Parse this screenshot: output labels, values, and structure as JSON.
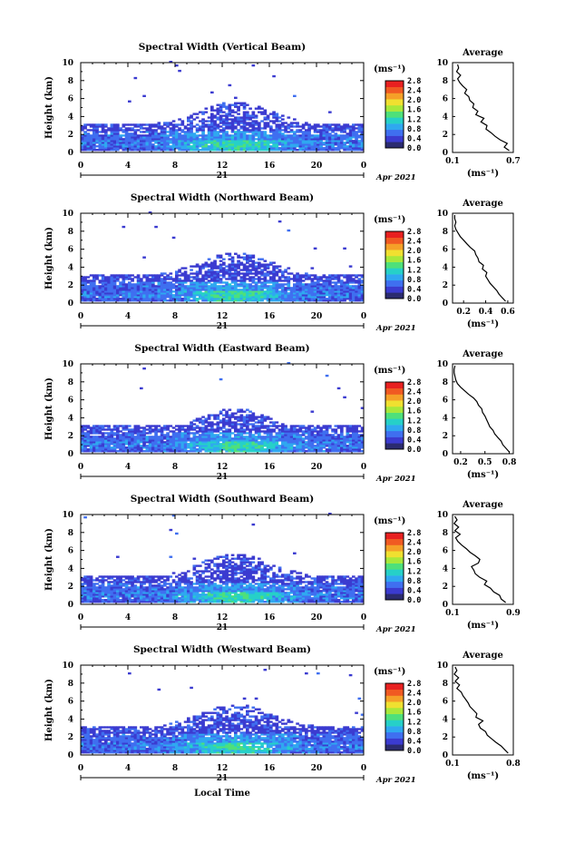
{
  "colors": {
    "scale": [
      "#2b2b70",
      "#3b3bd0",
      "#3f6ff0",
      "#2fa8f0",
      "#26d0c8",
      "#4ee07a",
      "#a8e83a",
      "#f0e030",
      "#f5a028",
      "#f05a22",
      "#e82020"
    ]
  },
  "chart_data": [
    {
      "type": "heatmap",
      "title": "Spectral Width (Vertical Beam)",
      "ylabel": "Height (km)",
      "ylim": [
        0,
        10
      ],
      "x_ticks": [
        "0",
        "4",
        "8",
        "12",
        "16",
        "20",
        "0"
      ],
      "day_label": "21",
      "date_label": "Apr 2021",
      "colorbar": {
        "unit": "(ms⁻¹)",
        "ticks": [
          "2.8",
          "2.4",
          "2.0",
          "1.6",
          "1.2",
          "0.8",
          "0.4",
          "0.0"
        ],
        "range": [
          0,
          2.8
        ]
      },
      "profile": {
        "title": "Average",
        "xlabel": "(ms⁻¹)",
        "x_ticks": [
          "0.1",
          "0.7"
        ],
        "xlim": [
          0.1,
          0.7
        ],
        "y": [
          0.2,
          0.6,
          1.0,
          1.4,
          1.8,
          2.2,
          2.6,
          3.0,
          3.4,
          3.8,
          4.2,
          4.6,
          5.0,
          5.4,
          5.8,
          6.2,
          6.6,
          7.0,
          7.4,
          7.8,
          8.2,
          8.6,
          9.0,
          9.4,
          9.8
        ],
        "x": [
          0.66,
          0.61,
          0.64,
          0.57,
          0.52,
          0.48,
          0.43,
          0.44,
          0.38,
          0.41,
          0.33,
          0.35,
          0.3,
          0.31,
          0.27,
          0.26,
          0.22,
          0.24,
          0.2,
          0.17,
          0.15,
          0.18,
          0.14,
          0.16,
          0.15
        ]
      }
    },
    {
      "type": "heatmap",
      "title": "Spectral Width (Northward Beam)",
      "ylabel": "Height (km)",
      "ylim": [
        0,
        10
      ],
      "x_ticks": [
        "0",
        "4",
        "8",
        "12",
        "16",
        "20",
        "0"
      ],
      "day_label": "21",
      "date_label": "Apr 2021",
      "colorbar": {
        "unit": "(ms⁻¹)",
        "ticks": [
          "2.8",
          "2.4",
          "2.0",
          "1.6",
          "1.2",
          "0.8",
          "0.4",
          "0.0"
        ],
        "range": [
          0,
          2.8
        ]
      },
      "profile": {
        "title": "Average",
        "xlabel": "(ms⁻¹)",
        "x_ticks": [
          "0.2",
          "0.4",
          "0.6"
        ],
        "xlim": [
          0.1,
          0.65
        ],
        "y": [
          0.2,
          0.6,
          1.0,
          1.4,
          1.8,
          2.2,
          2.6,
          3.0,
          3.4,
          3.8,
          4.2,
          4.6,
          5.0,
          5.4,
          5.8,
          6.2,
          6.6,
          7.0,
          7.4,
          7.8,
          8.2,
          8.6,
          9.0,
          9.4,
          9.8
        ],
        "x": [
          0.58,
          0.55,
          0.52,
          0.5,
          0.47,
          0.44,
          0.42,
          0.4,
          0.41,
          0.37,
          0.38,
          0.34,
          0.33,
          0.31,
          0.3,
          0.26,
          0.23,
          0.2,
          0.17,
          0.15,
          0.13,
          0.12,
          0.13,
          0.12,
          0.12
        ]
      }
    },
    {
      "type": "heatmap",
      "title": "Spectral Width (Eastward Beam)",
      "ylabel": "Height (km)",
      "ylim": [
        0,
        10
      ],
      "x_ticks": [
        "0",
        "4",
        "8",
        "12",
        "16",
        "20",
        "0"
      ],
      "day_label": "21",
      "date_label": "Apr 2021",
      "colorbar": {
        "unit": "(ms⁻¹)",
        "ticks": [
          "2.8",
          "2.4",
          "2.0",
          "1.6",
          "1.2",
          "0.8",
          "0.4",
          "0.0"
        ],
        "range": [
          0,
          2.8
        ]
      },
      "profile": {
        "title": "Average",
        "xlabel": "(ms⁻¹)",
        "x_ticks": [
          "0.2",
          "0.5",
          "0.8"
        ],
        "xlim": [
          0.1,
          0.85
        ],
        "y": [
          0.2,
          0.6,
          1.0,
          1.4,
          1.8,
          2.2,
          2.6,
          3.0,
          3.4,
          3.8,
          4.2,
          4.6,
          5.0,
          5.4,
          5.8,
          6.2,
          6.6,
          7.0,
          7.4,
          7.8,
          8.2,
          8.6,
          9.0,
          9.4,
          9.8
        ],
        "x": [
          0.8,
          0.76,
          0.72,
          0.7,
          0.66,
          0.62,
          0.6,
          0.56,
          0.54,
          0.52,
          0.5,
          0.47,
          0.46,
          0.42,
          0.4,
          0.36,
          0.3,
          0.25,
          0.2,
          0.16,
          0.14,
          0.13,
          0.12,
          0.12,
          0.13
        ]
      }
    },
    {
      "type": "heatmap",
      "title": "Spectral Width (Southward Beam)",
      "ylabel": "Height (km)",
      "ylim": [
        0,
        10
      ],
      "x_ticks": [
        "0",
        "4",
        "8",
        "12",
        "16",
        "20",
        "0"
      ],
      "day_label": "21",
      "date_label": "Apr 2021",
      "colorbar": {
        "unit": "(ms⁻¹)",
        "ticks": [
          "2.8",
          "2.4",
          "2.0",
          "1.6",
          "1.2",
          "0.8",
          "0.4",
          "0.0"
        ],
        "range": [
          0,
          2.8
        ]
      },
      "profile": {
        "title": "Average",
        "xlabel": "(ms⁻¹)",
        "x_ticks": [
          "0.1",
          "0.9"
        ],
        "xlim": [
          0.1,
          0.9
        ],
        "y": [
          0.2,
          0.6,
          1.0,
          1.4,
          1.8,
          2.2,
          2.6,
          3.0,
          3.4,
          3.8,
          4.2,
          4.6,
          5.0,
          5.4,
          5.8,
          6.2,
          6.6,
          7.0,
          7.4,
          7.8,
          8.2,
          8.6,
          9.0,
          9.4,
          9.8
        ],
        "x": [
          0.8,
          0.74,
          0.72,
          0.64,
          0.6,
          0.52,
          0.55,
          0.46,
          0.4,
          0.38,
          0.35,
          0.44,
          0.46,
          0.4,
          0.33,
          0.28,
          0.22,
          0.17,
          0.14,
          0.2,
          0.13,
          0.18,
          0.12,
          0.16,
          0.13
        ]
      }
    },
    {
      "type": "heatmap",
      "title": "Spectral Width (Westward Beam)",
      "ylabel": "Height (km)",
      "ylim": [
        0,
        10
      ],
      "x_ticks": [
        "0",
        "4",
        "8",
        "12",
        "16",
        "20",
        "0"
      ],
      "day_label": "21",
      "date_label": "Apr 2021",
      "xlabel": "Local Time",
      "colorbar": {
        "unit": "(ms⁻¹)",
        "ticks": [
          "2.8",
          "2.4",
          "2.0",
          "1.6",
          "1.2",
          "0.8",
          "0.4",
          "0.0"
        ],
        "range": [
          0,
          2.8
        ]
      },
      "profile": {
        "title": "Average",
        "xlabel": "(ms⁻¹)",
        "x_ticks": [
          "0.1",
          "0.8"
        ],
        "xlim": [
          0.1,
          0.8
        ],
        "y": [
          0.2,
          0.6,
          1.0,
          1.4,
          1.8,
          2.2,
          2.6,
          3.0,
          3.4,
          3.8,
          4.2,
          4.6,
          5.0,
          5.4,
          5.8,
          6.2,
          6.6,
          7.0,
          7.4,
          7.8,
          8.2,
          8.6,
          9.0,
          9.4,
          9.8
        ],
        "x": [
          0.74,
          0.7,
          0.66,
          0.6,
          0.55,
          0.5,
          0.48,
          0.42,
          0.4,
          0.45,
          0.37,
          0.38,
          0.34,
          0.3,
          0.28,
          0.25,
          0.22,
          0.2,
          0.15,
          0.18,
          0.13,
          0.17,
          0.12,
          0.15,
          0.13
        ]
      }
    }
  ]
}
